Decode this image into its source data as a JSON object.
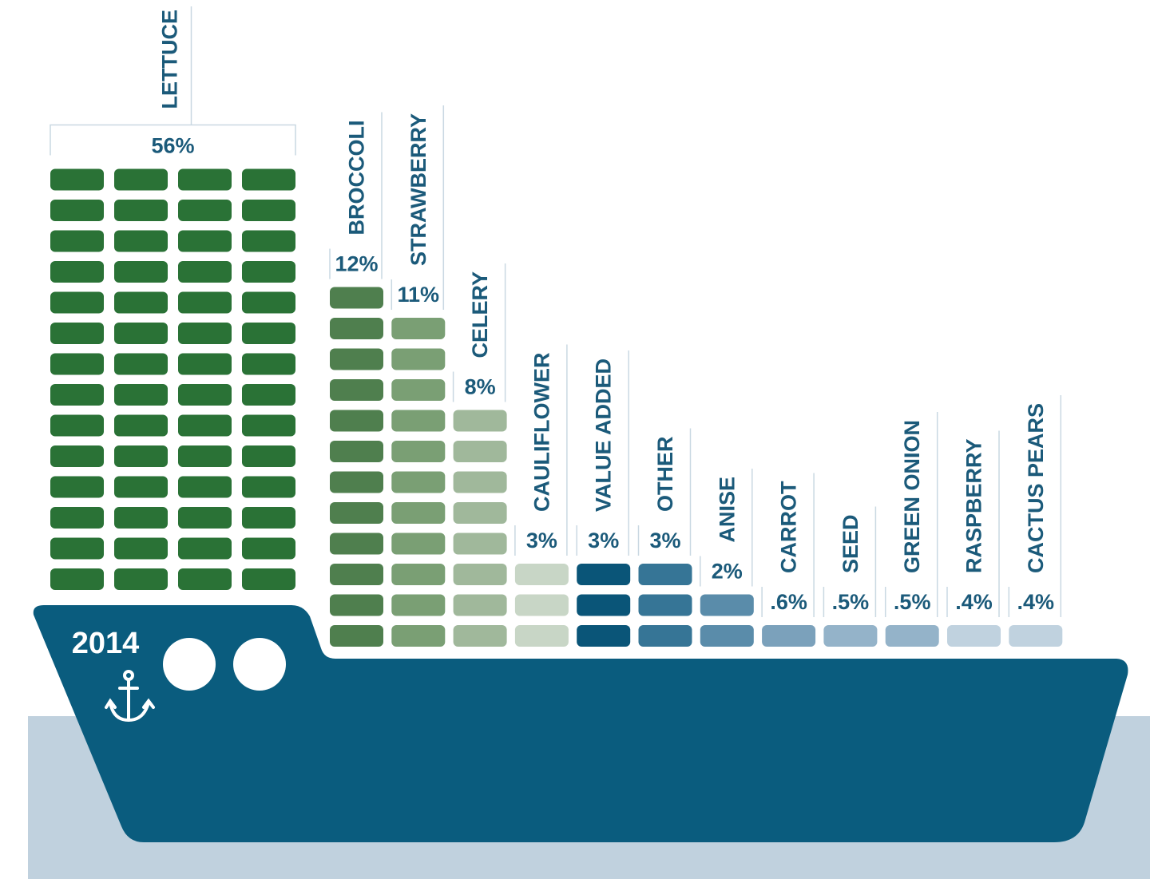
{
  "chart_data": {
    "type": "container-ship",
    "title": "2014",
    "categories": [
      "LETTUCE",
      "BROCCOLI",
      "STRAWBERRY",
      "CELERY",
      "CAULIFLOWER",
      "VALUE ADDED",
      "OTHER",
      "ANISE",
      "CARROT",
      "SEED",
      "GREEN ONION",
      "RASPBERRY",
      "CACTUS PEARS"
    ],
    "values": [
      56,
      12,
      11,
      8,
      3,
      3,
      3,
      2,
      0.6,
      0.5,
      0.5,
      0.4,
      0.4
    ],
    "value_labels": [
      "56%",
      "12%",
      "11%",
      "8%",
      "3%",
      "3%",
      "3%",
      "2%",
      ".6%",
      ".5%",
      ".5%",
      ".4%",
      ".4%"
    ],
    "colors": [
      "#2a7236",
      "#4f7f4e",
      "#7a9f74",
      "#a0b89b",
      "#c8d6c6",
      "#0a5578",
      "#367596",
      "#5a8caa",
      "#7ba1bb",
      "#94b3c9",
      "#94b3c9",
      "#c0d2df",
      "#c0d2df"
    ]
  }
}
